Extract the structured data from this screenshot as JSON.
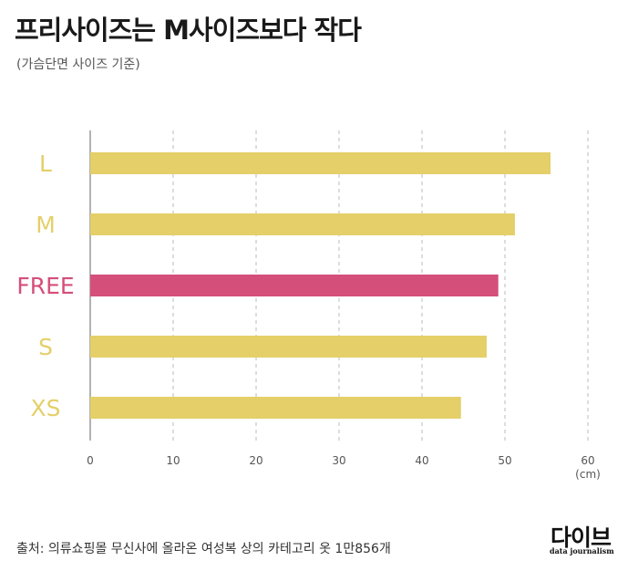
{
  "header": {
    "title": "프리사이즈는 M사이즈보다 작다",
    "subtitle": "(가슴단면 사이즈 기준)"
  },
  "chart_data": {
    "type": "bar",
    "orientation": "horizontal",
    "categories": [
      "L",
      "M",
      "FREE",
      "S",
      "XS"
    ],
    "values": [
      55.5,
      51.2,
      49.2,
      47.8,
      44.7
    ],
    "highlight": "FREE",
    "xlim": [
      0,
      60
    ],
    "xticks": [
      0,
      10,
      20,
      30,
      40,
      50,
      60
    ],
    "xunit": "(cm)",
    "grid": "vertical-dashed",
    "colors": {
      "default": "#e4cf69",
      "highlight": "#d44f7a",
      "grid": "#bbbbbb",
      "axis": "#999999"
    }
  },
  "footer": {
    "source": "출처: 의류쇼핑몰 무신사에 올라온 여성복 상의 카테고리 옷 1만856개",
    "logo_text": "다이브",
    "logo_sub": "data journalism"
  }
}
